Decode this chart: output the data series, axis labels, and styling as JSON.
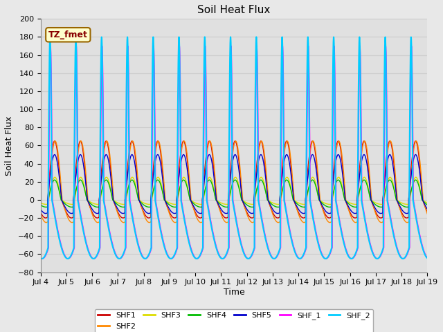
{
  "title": "Soil Heat Flux",
  "ylabel": "Soil Heat Flux",
  "xlabel": "Time",
  "ylim": [
    -80,
    200
  ],
  "xlim_days": [
    0,
    15
  ],
  "x_tick_labels": [
    "Jul 4",
    "Jul 5",
    "Jul 6",
    "Jul 7",
    "Jul 8",
    "Jul 9",
    "Jul 10",
    "Jul 11",
    "Jul 12",
    "Jul 13",
    "Jul 14",
    "Jul 15",
    "Jul 16",
    "Jul 17",
    "Jul 18",
    "Jul 19"
  ],
  "annotation_text": "TZ_fmet",
  "annotation_bg": "#FFFFCC",
  "annotation_border": "#996600",
  "series_order": [
    "SHF1",
    "SHF2",
    "SHF3",
    "SHF4",
    "SHF5",
    "SHF_1",
    "SHF_2"
  ],
  "series": {
    "SHF1": {
      "color": "#CC0000",
      "lw": 1.0
    },
    "SHF2": {
      "color": "#FF8800",
      "lw": 1.0
    },
    "SHF3": {
      "color": "#DDDD00",
      "lw": 1.0
    },
    "SHF4": {
      "color": "#00BB00",
      "lw": 1.0
    },
    "SHF5": {
      "color": "#0000CC",
      "lw": 1.0
    },
    "SHF_1": {
      "color": "#FF00FF",
      "lw": 1.0
    },
    "SHF_2": {
      "color": "#00CCFF",
      "lw": 1.5
    }
  },
  "bg_color": "#E8E8E8",
  "ax_bg_color": "#E0E0E0",
  "grid_color": "#CCCCCC",
  "title_fontsize": 11,
  "label_fontsize": 9,
  "tick_fontsize": 8
}
